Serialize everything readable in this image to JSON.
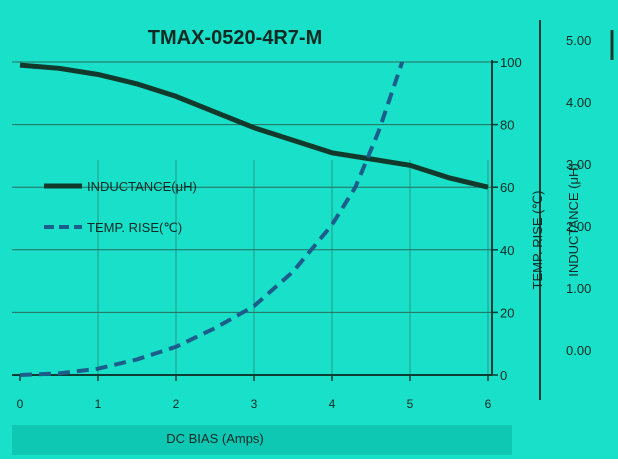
{
  "colors": {
    "background": "#19e0c8",
    "inductance_line": "#123a2c",
    "temp_line": "#1b5e8c",
    "grid": "#2a6b5e",
    "axis": "#0e3b33",
    "text": "#0f2a24",
    "footer_band": "#0fc8b4"
  },
  "chart_data": [
    {
      "type": "line",
      "title": "TMAX-0520-4R7-M",
      "xlabel": "DC BIAS  (Amps)",
      "ylabel": "",
      "y2label": "TEMP. RISE (℃)",
      "x_ticks": [
        "0",
        "1",
        "2",
        "3",
        "4",
        "5",
        "6"
      ],
      "xlim": [
        0,
        6
      ],
      "y_right_ticks": [
        "0",
        "20",
        "40",
        "60",
        "80",
        "100"
      ],
      "ylim_right": [
        0,
        100
      ],
      "grid": true,
      "legend_position": "left",
      "series": [
        {
          "name": "INDUCTANCE(μH)",
          "style": "solid",
          "axis": "right",
          "x": [
            0,
            0.5,
            1,
            1.5,
            2,
            2.5,
            3,
            3.5,
            4,
            4.5,
            5,
            5.5,
            6
          ],
          "y": [
            99,
            98,
            96,
            93,
            89,
            84,
            79,
            75,
            71,
            69,
            67,
            63,
            60
          ]
        },
        {
          "name": "TEMP. RISE(℃)",
          "style": "dashed",
          "axis": "right",
          "x": [
            0,
            0.5,
            1,
            1.5,
            2,
            2.5,
            3,
            3.5,
            4,
            4.3,
            4.6,
            4.9
          ],
          "y": [
            0,
            0.5,
            2,
            5,
            9,
            15,
            22,
            33,
            48,
            60,
            78,
            100
          ]
        }
      ]
    },
    {
      "type": "line",
      "title": "",
      "xlabel": "",
      "ylabel": "INDUCTANCE (μH)",
      "y_ticks": [
        "0.00",
        "1.00",
        "2.00",
        "3.00",
        "4.00",
        "5.00"
      ],
      "ylim": [
        0,
        5
      ],
      "series": []
    }
  ]
}
